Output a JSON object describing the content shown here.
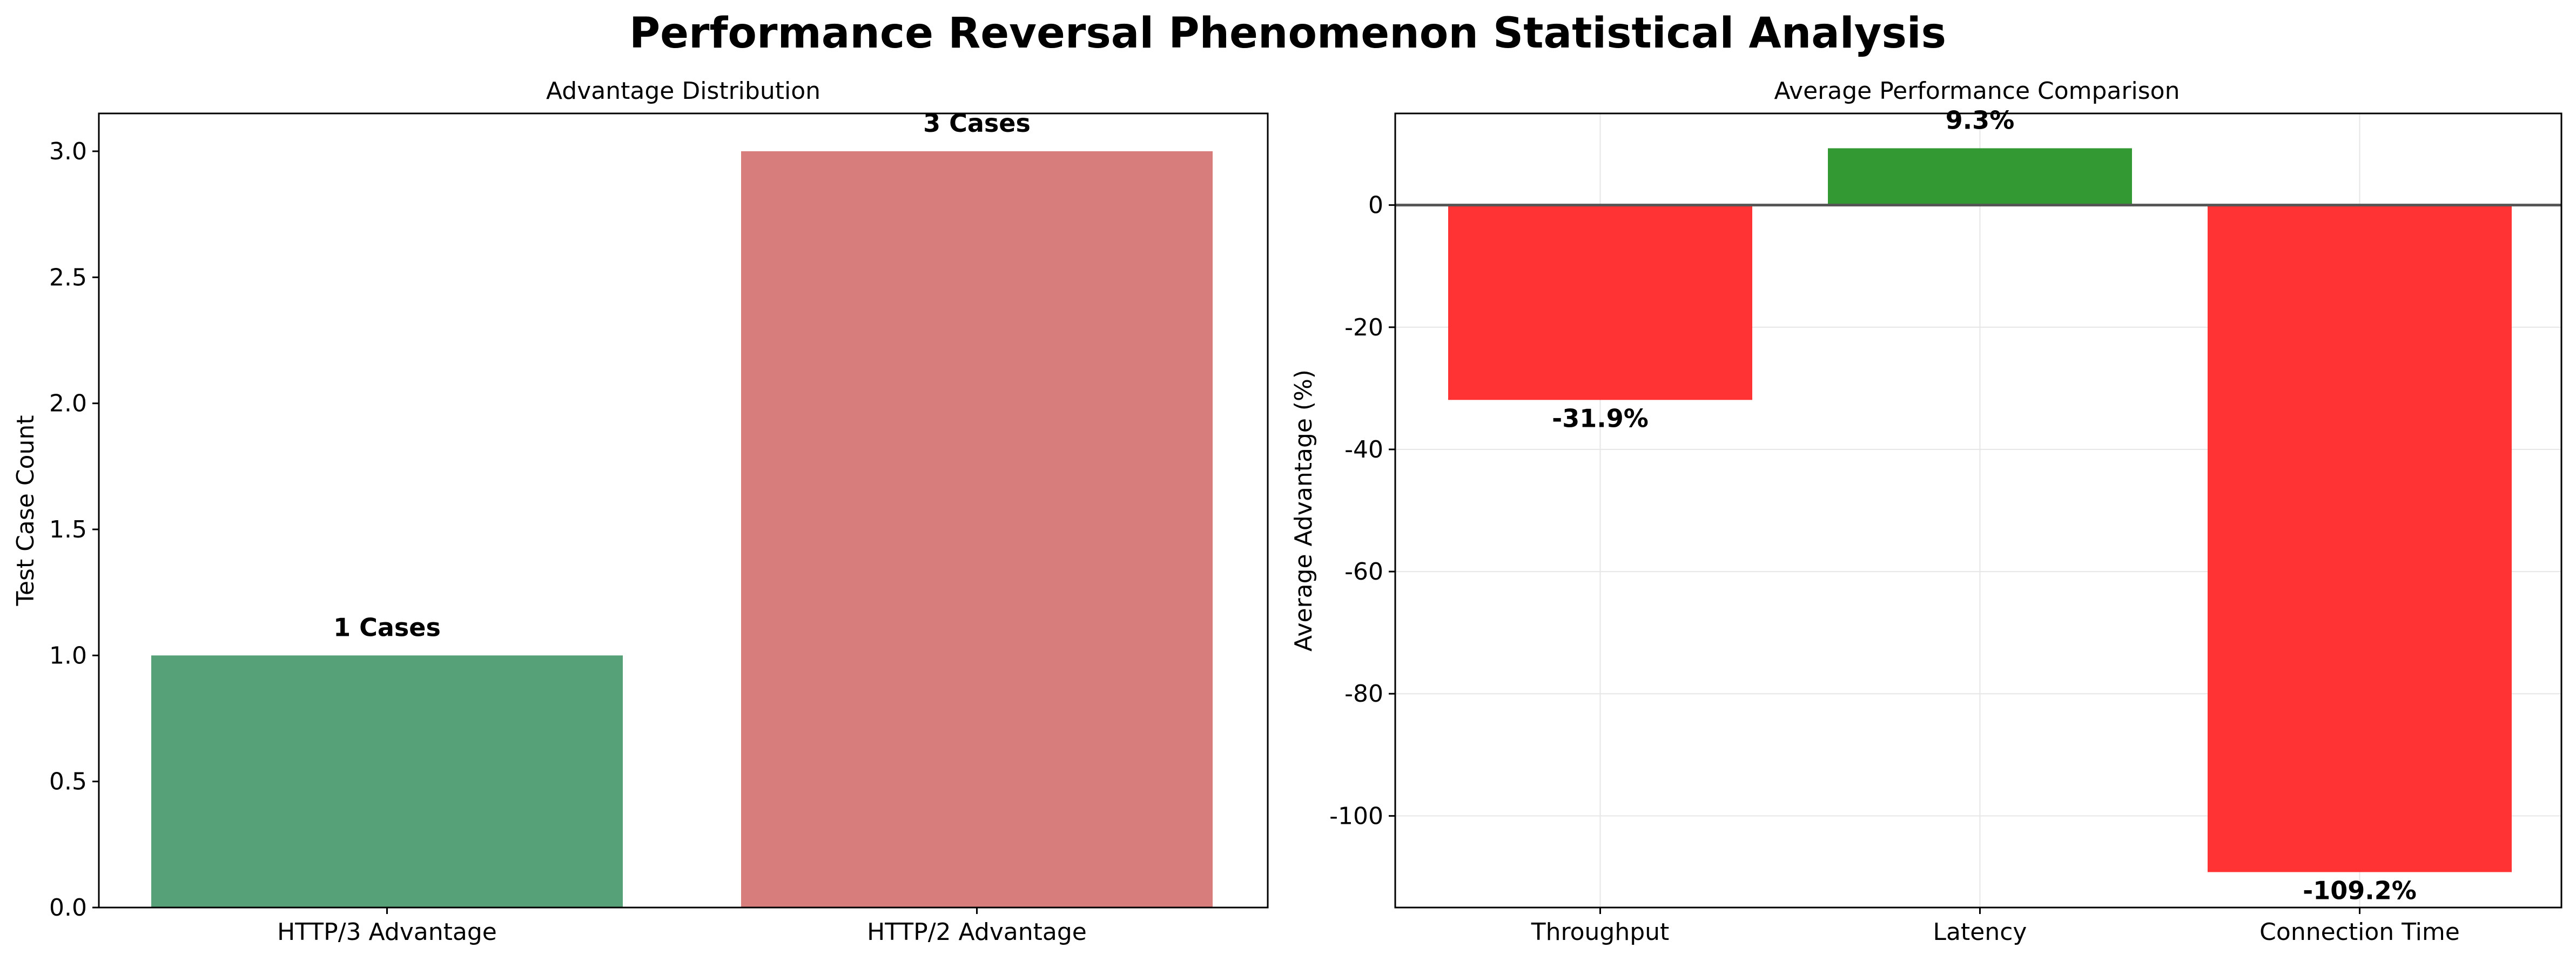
{
  "figure": {
    "title": "Performance Reversal Phenomenon Statistical Analysis"
  },
  "chart_data": [
    {
      "type": "bar",
      "title": "Advantage Distribution",
      "xlabel": "",
      "ylabel": "Test Case Count",
      "categories": [
        "HTTP/3 Advantage",
        "HTTP/2 Advantage"
      ],
      "values": [
        1,
        3
      ],
      "data_labels": [
        "1 Cases",
        "3 Cases"
      ],
      "bar_colors": [
        "#56a178",
        "#d77d7c"
      ],
      "ylim": [
        0,
        3.15
      ],
      "yticks": [
        0,
        0.5,
        1,
        1.5,
        2,
        2.5,
        3
      ],
      "ytick_labels": [
        "0.0",
        "0.5",
        "1.0",
        "1.5",
        "2.0",
        "2.5",
        "3.0"
      ],
      "grid": false
    },
    {
      "type": "bar",
      "title": "Average Performance Comparison",
      "xlabel": "",
      "ylabel": "Average Advantage (%)",
      "categories": [
        "Throughput",
        "Latency",
        "Connection Time"
      ],
      "values": [
        -31.9,
        9.3,
        -109.2
      ],
      "data_labels": [
        "-31.9%",
        "9.3%",
        "-109.2%"
      ],
      "bar_colors": [
        "#ff3333",
        "#339933",
        "#ff3333"
      ],
      "ylim": [
        -115,
        15
      ],
      "yticks": [
        -100,
        -80,
        -60,
        -40,
        -20,
        0
      ],
      "ytick_labels": [
        "-100",
        "-80",
        "-60",
        "-40",
        "-20",
        "0"
      ],
      "zero_line": true,
      "grid": true
    }
  ]
}
